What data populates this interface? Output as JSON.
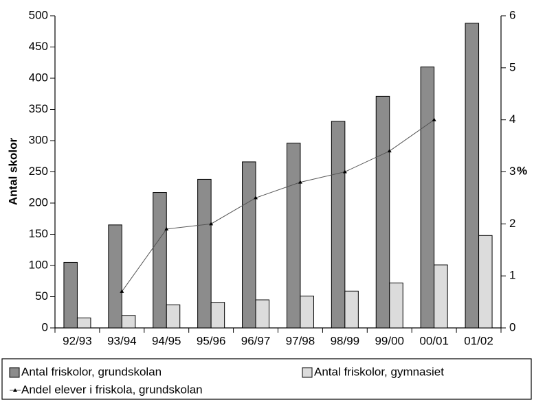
{
  "chart_data": {
    "type": "bar",
    "y_label": "Antal skolor",
    "y2_label": "%",
    "categories": [
      "92/93",
      "93/94",
      "94/95",
      "95/96",
      "96/97",
      "97/98",
      "98/99",
      "99/00",
      "00/01",
      "01/02"
    ],
    "series": [
      {
        "name": "Antal friskolor, grundskolan",
        "color": "#8c8c8c",
        "type": "bar",
        "values": [
          105,
          165,
          217,
          238,
          266,
          296,
          331,
          371,
          418,
          488
        ]
      },
      {
        "name": "Antal friskolor, gymnasiet",
        "color": "#dcdcdc",
        "type": "bar",
        "values": [
          16,
          20,
          37,
          41,
          45,
          51,
          59,
          72,
          101,
          148
        ]
      },
      {
        "name": "Andel elever i friskola, grundskolan",
        "color": "#555555",
        "type": "line",
        "axis": "y2",
        "values": [
          null,
          0.7,
          1.9,
          2.0,
          2.5,
          2.8,
          3.0,
          3.4,
          4.0,
          null
        ]
      }
    ],
    "ylim": [
      0,
      500
    ],
    "yticks": [
      0,
      50,
      100,
      150,
      200,
      250,
      300,
      350,
      400,
      450,
      500
    ],
    "y2lim": [
      0,
      6
    ],
    "y2ticks": [
      0,
      1,
      2,
      3,
      4,
      5,
      6
    ],
    "grid": false,
    "legend": "bottom"
  }
}
